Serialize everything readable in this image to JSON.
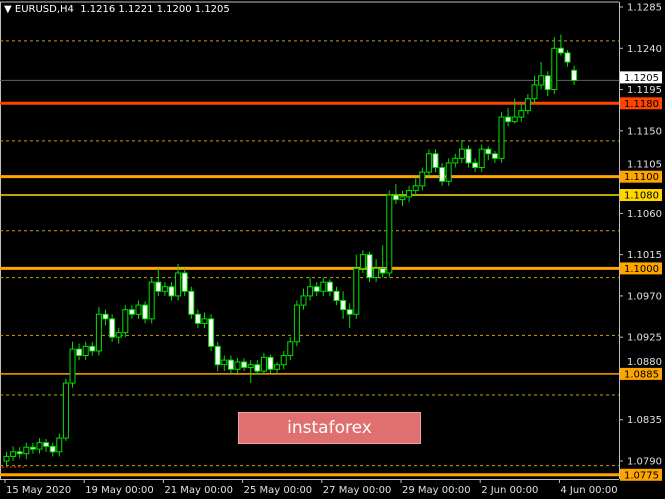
{
  "header": {
    "symbol": "EURUSD,H4",
    "ohlc": "1.1216 1.1221 1.1200 1.1205",
    "menu_icon": "triangle-down-icon"
  },
  "watermark": "instaforex",
  "colors": {
    "background": "#000000",
    "candle_outline": "#00e000",
    "bear_fill": "#ffffff",
    "bull_fill": "#000000",
    "axis": "#c0c0c0",
    "current_price_line": "#606060",
    "dashed_level": "#c8a000"
  },
  "chart_data": {
    "type": "candlestick",
    "symbol": "EURUSD",
    "timeframe": "H4",
    "ylim": [
      1.077,
      1.129
    ],
    "y_ticks": [
      "1.1285",
      "1.1240",
      "1.1195",
      "1.1150",
      "1.1105",
      "1.1060",
      "1.1015",
      "1.0970",
      "1.0925",
      "1.0880",
      "1.0835",
      "1.0790"
    ],
    "x_ticks": [
      {
        "label": "15 May 2020",
        "bar": 0
      },
      {
        "label": "19 May 00:00",
        "bar": 12
      },
      {
        "label": "21 May 00:00",
        "bar": 24
      },
      {
        "label": "25 May 00:00",
        "bar": 36
      },
      {
        "label": "27 May 00:00",
        "bar": 48
      },
      {
        "label": "29 May 00:00",
        "bar": 60
      },
      {
        "label": "2 Jun 00:00",
        "bar": 72
      },
      {
        "label": "4 Jun 00:00",
        "bar": 84
      }
    ],
    "current_price": {
      "value": 1.1205,
      "label": "1.1205"
    },
    "levels": [
      {
        "value": 1.118,
        "label": "1.1180",
        "color": "#ff4500",
        "weight": "thick"
      },
      {
        "value": 1.11,
        "label": "1.1100",
        "color": "#ffa500",
        "weight": "thick"
      },
      {
        "value": 1.108,
        "label": "1.1080",
        "color": "#ffd700",
        "weight": "thin"
      },
      {
        "value": 1.1,
        "label": "1.1000",
        "color": "#ffa500",
        "weight": "thick"
      },
      {
        "value": 1.0885,
        "label": "1.0885",
        "color": "#ffa500",
        "weight": "thin"
      },
      {
        "value": 1.0775,
        "label": "1.0775",
        "color": "#ffa500",
        "weight": "thick"
      }
    ],
    "dashed_levels": [
      1.1248,
      1.1139,
      1.1041,
      1.099,
      1.0927,
      1.0862,
      1.0785
    ],
    "candles": [
      [
        1.079,
        1.08,
        1.0785,
        1.0795
      ],
      [
        1.0795,
        1.0806,
        1.079,
        1.08
      ],
      [
        1.08,
        1.0805,
        1.0793,
        1.0798
      ],
      [
        1.0798,
        1.081,
        1.0792,
        1.0805
      ],
      [
        1.0805,
        1.081,
        1.0798,
        1.0803
      ],
      [
        1.0803,
        1.0815,
        1.0798,
        1.081
      ],
      [
        1.081,
        1.0814,
        1.08,
        1.0806
      ],
      [
        1.0806,
        1.081,
        1.0795,
        1.08
      ],
      [
        1.08,
        1.082,
        1.0795,
        1.0815
      ],
      [
        1.0815,
        1.088,
        1.0812,
        1.0875
      ],
      [
        1.0875,
        1.092,
        1.087,
        1.0912
      ],
      [
        1.0912,
        1.0918,
        1.09,
        1.0905
      ],
      [
        1.0905,
        1.092,
        1.09,
        1.0915
      ],
      [
        1.0915,
        1.092,
        1.0905,
        1.091
      ],
      [
        1.091,
        1.0958,
        1.0905,
        1.095
      ],
      [
        1.095,
        1.0955,
        1.0938,
        1.0945
      ],
      [
        1.0945,
        1.095,
        1.092,
        1.0925
      ],
      [
        1.0925,
        1.0935,
        1.0918,
        1.093
      ],
      [
        1.093,
        1.096,
        1.0925,
        1.0955
      ],
      [
        1.0955,
        1.096,
        1.0945,
        1.095
      ],
      [
        1.095,
        1.0965,
        1.0945,
        1.096
      ],
      [
        1.096,
        1.0964,
        1.094,
        1.0945
      ],
      [
        1.0945,
        1.099,
        1.094,
        1.0985
      ],
      [
        1.0985,
        1.1,
        1.097,
        1.0975
      ],
      [
        1.0975,
        1.0985,
        1.097,
        1.098
      ],
      [
        1.098,
        1.0985,
        1.0965,
        1.097
      ],
      [
        1.097,
        1.1005,
        1.0965,
        1.0995
      ],
      [
        1.0995,
        1.1,
        1.097,
        1.0975
      ],
      [
        1.0975,
        1.098,
        1.0945,
        1.095
      ],
      [
        1.095,
        1.0955,
        1.0935,
        1.094
      ],
      [
        1.094,
        1.0952,
        1.0935,
        1.0945
      ],
      [
        1.0945,
        1.095,
        1.091,
        1.0915
      ],
      [
        1.0915,
        1.092,
        1.0888,
        1.0895
      ],
      [
        1.0895,
        1.0905,
        1.0888,
        1.09
      ],
      [
        1.09,
        1.0905,
        1.0885,
        1.089
      ],
      [
        1.089,
        1.0902,
        1.0886,
        1.0898
      ],
      [
        1.0898,
        1.0902,
        1.0888,
        1.0892
      ],
      [
        1.0892,
        1.09,
        1.0875,
        1.0895
      ],
      [
        1.0895,
        1.09,
        1.0884,
        1.0888
      ],
      [
        1.0888,
        1.0908,
        1.0885,
        1.0903
      ],
      [
        1.0903,
        1.0906,
        1.0886,
        1.089
      ],
      [
        1.089,
        1.0898,
        1.0886,
        1.0895
      ],
      [
        1.0895,
        1.091,
        1.089,
        1.0905
      ],
      [
        1.0905,
        1.0925,
        1.09,
        1.092
      ],
      [
        1.092,
        1.0965,
        1.0915,
        1.096
      ],
      [
        1.096,
        1.0978,
        1.0955,
        1.097
      ],
      [
        1.097,
        1.099,
        1.0965,
        1.098
      ],
      [
        1.098,
        1.0985,
        1.097,
        1.0975
      ],
      [
        1.0975,
        1.099,
        1.097,
        1.0985
      ],
      [
        1.0985,
        1.0988,
        1.097,
        1.0975
      ],
      [
        1.0975,
        1.098,
        1.096,
        1.0965
      ],
      [
        1.0965,
        1.0975,
        1.0945,
        1.0955
      ],
      [
        1.0955,
        1.0962,
        1.0935,
        1.095
      ],
      [
        1.095,
        1.1015,
        1.0945,
        1.1
      ],
      [
        1.1,
        1.102,
        1.0995,
        1.1015
      ],
      [
        1.1015,
        1.1018,
        1.0985,
        1.099
      ],
      [
        1.099,
        1.101,
        1.0985,
        1.1
      ],
      [
        1.1,
        1.1025,
        1.099,
        1.0995
      ],
      [
        1.0995,
        1.1085,
        1.099,
        1.108
      ],
      [
        1.108,
        1.1092,
        1.107,
        1.1075
      ],
      [
        1.1075,
        1.1085,
        1.1068,
        1.1078
      ],
      [
        1.1078,
        1.109,
        1.1072,
        1.1085
      ],
      [
        1.1085,
        1.1098,
        1.108,
        1.109
      ],
      [
        1.109,
        1.111,
        1.1085,
        1.1105
      ],
      [
        1.1105,
        1.113,
        1.11,
        1.1125
      ],
      [
        1.1125,
        1.113,
        1.1105,
        1.111
      ],
      [
        1.111,
        1.1115,
        1.109,
        1.1095
      ],
      [
        1.1095,
        1.112,
        1.109,
        1.1115
      ],
      [
        1.1115,
        1.1125,
        1.111,
        1.112
      ],
      [
        1.112,
        1.114,
        1.1115,
        1.113
      ],
      [
        1.113,
        1.1134,
        1.111,
        1.1115
      ],
      [
        1.1115,
        1.112,
        1.1105,
        1.111
      ],
      [
        1.111,
        1.1135,
        1.1105,
        1.113
      ],
      [
        1.113,
        1.1133,
        1.1118,
        1.1125
      ],
      [
        1.1125,
        1.1128,
        1.1115,
        1.112
      ],
      [
        1.112,
        1.117,
        1.1115,
        1.1165
      ],
      [
        1.1165,
        1.1175,
        1.1155,
        1.116
      ],
      [
        1.116,
        1.1185,
        1.1158,
        1.1165
      ],
      [
        1.1165,
        1.118,
        1.116,
        1.1172
      ],
      [
        1.1172,
        1.119,
        1.1168,
        1.1185
      ],
      [
        1.1185,
        1.121,
        1.118,
        1.12
      ],
      [
        1.12,
        1.1225,
        1.1195,
        1.121
      ],
      [
        1.121,
        1.1215,
        1.1188,
        1.1195
      ],
      [
        1.1195,
        1.1252,
        1.119,
        1.124
      ],
      [
        1.124,
        1.1255,
        1.1232,
        1.1235
      ],
      [
        1.1235,
        1.1238,
        1.122,
        1.1225
      ],
      [
        1.1216,
        1.1221,
        1.12,
        1.1205
      ]
    ]
  }
}
